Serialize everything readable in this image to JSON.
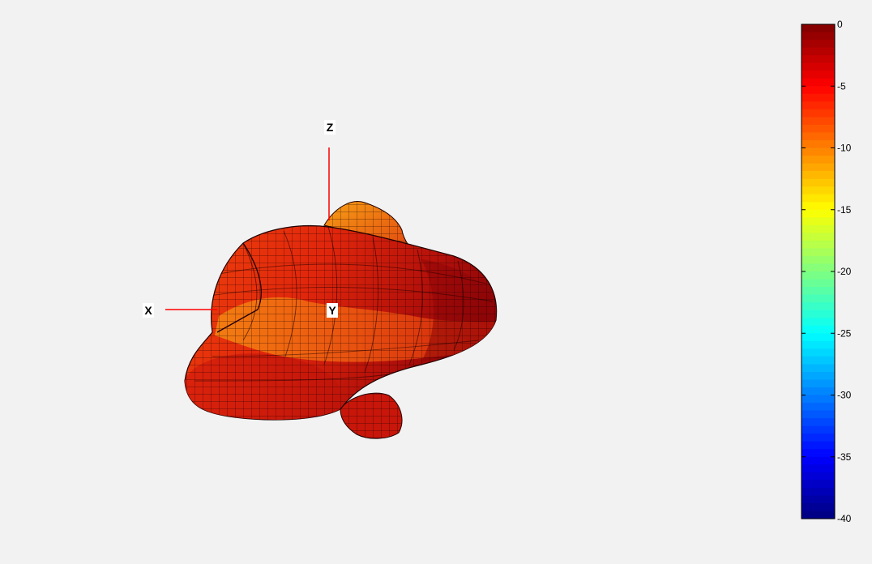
{
  "chart_data": {
    "type": "heatmap",
    "colorbar": {
      "colormap": "jet",
      "range": [
        -40,
        0
      ],
      "ticks": [
        0,
        -5,
        -10,
        -15,
        -20,
        -25,
        -30,
        -35,
        -40
      ],
      "tick_labels": [
        "0",
        "-5",
        "-10",
        "-15",
        "-20",
        "-25",
        "-30",
        "-35",
        "-40"
      ],
      "placement": "right"
    },
    "axes": {
      "x_label": "X",
      "y_label": "Y",
      "z_label": "Z"
    },
    "surface": {
      "kind": "3d-radiation-pattern",
      "mesh": true,
      "dominant_colors": [
        "#8b0000",
        "#c8140a",
        "#e02a0c",
        "#ef4a0e",
        "#f77e12"
      ]
    },
    "grid": false
  }
}
